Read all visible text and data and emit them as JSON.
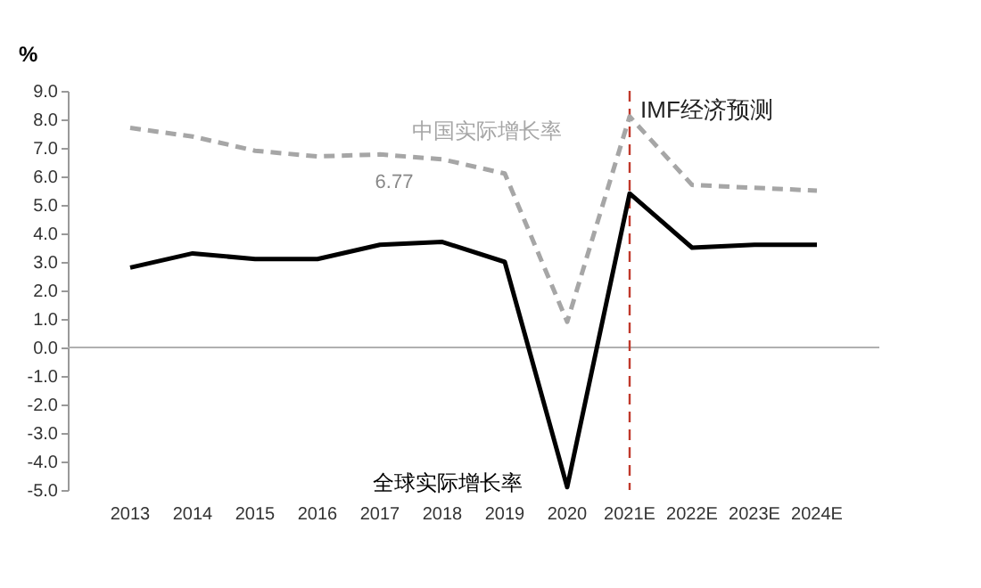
{
  "chart_data": {
    "type": "line",
    "ylabel": "%",
    "categories": [
      "2013",
      "2014",
      "2015",
      "2016",
      "2017",
      "2018",
      "2019",
      "2020",
      "2021E",
      "2022E",
      "2023E",
      "2024E"
    ],
    "series": [
      {
        "name": "中国实际增长率",
        "color": "#a6a6a6",
        "line_style": "dashed",
        "values": [
          7.7,
          7.4,
          6.9,
          6.7,
          6.77,
          6.6,
          6.1,
          0.9,
          8.1,
          5.7,
          5.6,
          5.5
        ]
      },
      {
        "name": "全球实际增长率",
        "color": "#000000",
        "line_style": "solid",
        "values": [
          2.8,
          3.3,
          3.1,
          3.1,
          3.6,
          3.7,
          3.0,
          -4.9,
          5.4,
          3.5,
          3.6,
          3.6
        ]
      }
    ],
    "annotations": [
      {
        "text": "6.77",
        "x": "2017",
        "y": 6.77
      }
    ],
    "ref_lines": [
      {
        "axis": "x",
        "value": "2021E",
        "label": "IMF经济预测",
        "color": "#c0392b",
        "line_style": "dashed"
      }
    ],
    "ylim": [
      -5,
      9
    ],
    "yticks": [
      {
        "value": -5,
        "label": "-5.0"
      },
      {
        "value": -4,
        "label": "-4.0"
      },
      {
        "value": -3,
        "label": "-3.0"
      },
      {
        "value": -2,
        "label": "-2.0"
      },
      {
        "value": -1,
        "label": "-1.0"
      },
      {
        "value": 0,
        "label": "0.0"
      },
      {
        "value": 1,
        "label": "1.0"
      },
      {
        "value": 2,
        "label": "2.0"
      },
      {
        "value": 3,
        "label": "3.0"
      },
      {
        "value": 4,
        "label": "4.0"
      },
      {
        "value": 5,
        "label": "5.0"
      },
      {
        "value": 6,
        "label": "6.0"
      },
      {
        "value": 7,
        "label": "7.0"
      },
      {
        "value": 8,
        "label": "8.0"
      },
      {
        "value": 9,
        "label": "9.0"
      }
    ],
    "grid": false,
    "legend": false,
    "marker": "none"
  }
}
